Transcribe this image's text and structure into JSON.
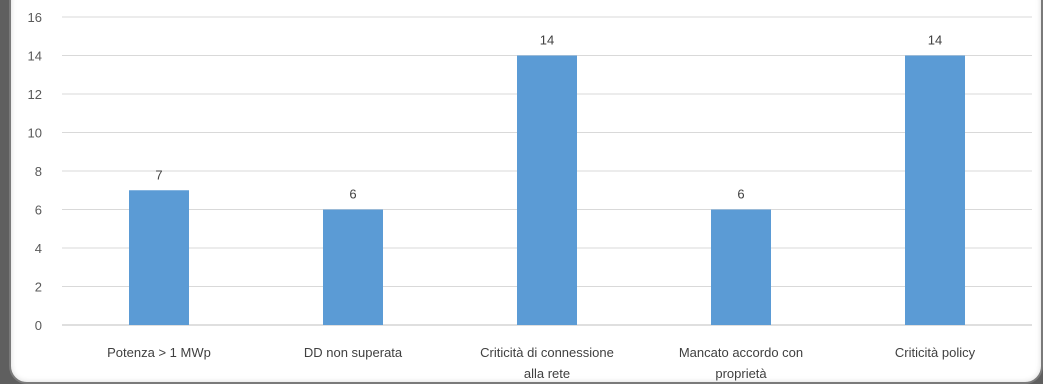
{
  "chart_data": {
    "type": "bar",
    "categories": [
      [
        "Potenza > 1 MWp"
      ],
      [
        "DD non superata"
      ],
      [
        "Criticità di connessione",
        "alla rete"
      ],
      [
        "Mancato accordo con",
        "proprietà"
      ],
      [
        "Criticità policy"
      ]
    ],
    "values": [
      7,
      6,
      14,
      6,
      14
    ],
    "ylim": [
      0,
      16
    ],
    "yticks": [
      0,
      2,
      4,
      6,
      8,
      10,
      12,
      14,
      16
    ],
    "grid": true,
    "legend": "none",
    "data_labels": true,
    "bar_color": "#5b9bd5",
    "grid_color": "#d9d9d9"
  }
}
